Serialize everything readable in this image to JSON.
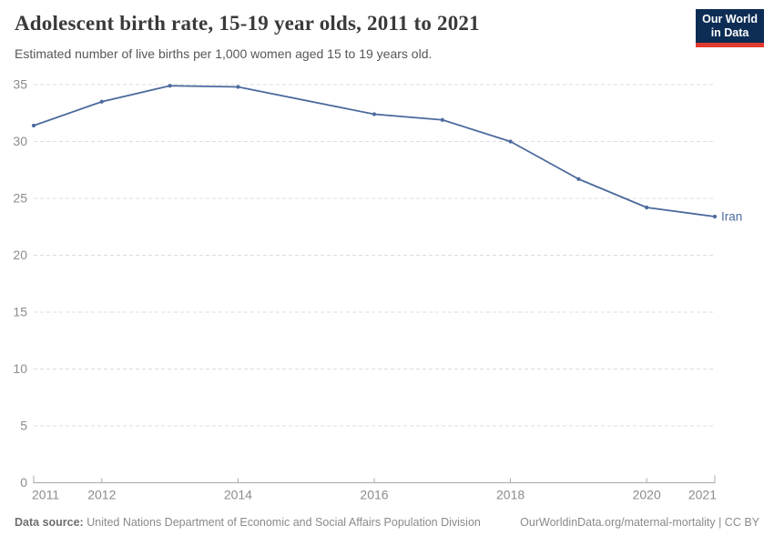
{
  "header": {
    "title": "Adolescent birth rate, 15-19 year olds, 2011 to 2021",
    "subtitle": "Estimated number of live births per 1,000 women aged 15 to 19 years old.",
    "logo": {
      "line1": "Our World",
      "line2": "in Data",
      "bg_color": "#0d2d54",
      "bar_color": "#e23b2e"
    }
  },
  "chart_data": {
    "type": "line",
    "title": "Adolescent birth rate, 15-19 year olds, 2011 to 2021",
    "xlabel": "",
    "ylabel": "",
    "xlim": [
      2011,
      2021
    ],
    "ylim": [
      0,
      35
    ],
    "yticks": [
      0,
      5,
      10,
      15,
      20,
      25,
      30,
      35
    ],
    "xticks": [
      2011,
      2012,
      2014,
      2016,
      2018,
      2020,
      2021
    ],
    "grid": "horizontal-dashed",
    "legend_position": "end-of-line-label",
    "series": [
      {
        "name": "Iran",
        "color": "#4c6a9c",
        "x": [
          2011,
          2012,
          2013,
          2014,
          2016,
          2017,
          2018,
          2019,
          2020,
          2021
        ],
        "values": [
          31.4,
          33.5,
          34.9,
          34.8,
          32.4,
          31.9,
          30.0,
          26.7,
          24.2,
          23.4
        ]
      }
    ]
  },
  "footer": {
    "source_label": "Data source:",
    "source_text": "United Nations Department of Economic and Social Affairs Population Division",
    "credit": "OurWorldinData.org/maternal-mortality | CC BY"
  },
  "colors": {
    "accent_blue": "#4c6a9c",
    "grid": "#dddddd",
    "axis": "#a8a8a8",
    "tick_text": "#8c8c8c",
    "title_text": "#3a3a3a",
    "subtitle_text": "#575757",
    "footer_text": "#8a8a8a"
  }
}
